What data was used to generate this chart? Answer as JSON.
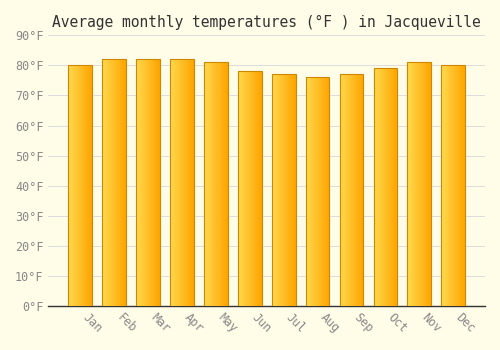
{
  "title": "Average monthly temperatures (°F ) in Jacqueville",
  "months": [
    "Jan",
    "Feb",
    "Mar",
    "Apr",
    "May",
    "Jun",
    "Jul",
    "Aug",
    "Sep",
    "Oct",
    "Nov",
    "Dec"
  ],
  "values": [
    80,
    82,
    82,
    82,
    81,
    78,
    77,
    76,
    77,
    79,
    81,
    80
  ],
  "bar_color_left": "#FFD84D",
  "bar_color_right": "#FFA500",
  "bar_edge_color": "#CC8800",
  "background_color": "#FFFCE8",
  "grid_color": "#DDDDDD",
  "ylim": [
    0,
    90
  ],
  "yticks": [
    0,
    10,
    20,
    30,
    40,
    50,
    60,
    70,
    80,
    90
  ],
  "ytick_labels": [
    "0°F",
    "10°F",
    "20°F",
    "30°F",
    "40°F",
    "50°F",
    "60°F",
    "70°F",
    "80°F",
    "90°F"
  ],
  "tick_color": "#888888",
  "title_fontsize": 10.5,
  "tick_fontsize": 8.5,
  "figsize": [
    5.0,
    3.5
  ],
  "dpi": 100,
  "bar_width": 0.7
}
